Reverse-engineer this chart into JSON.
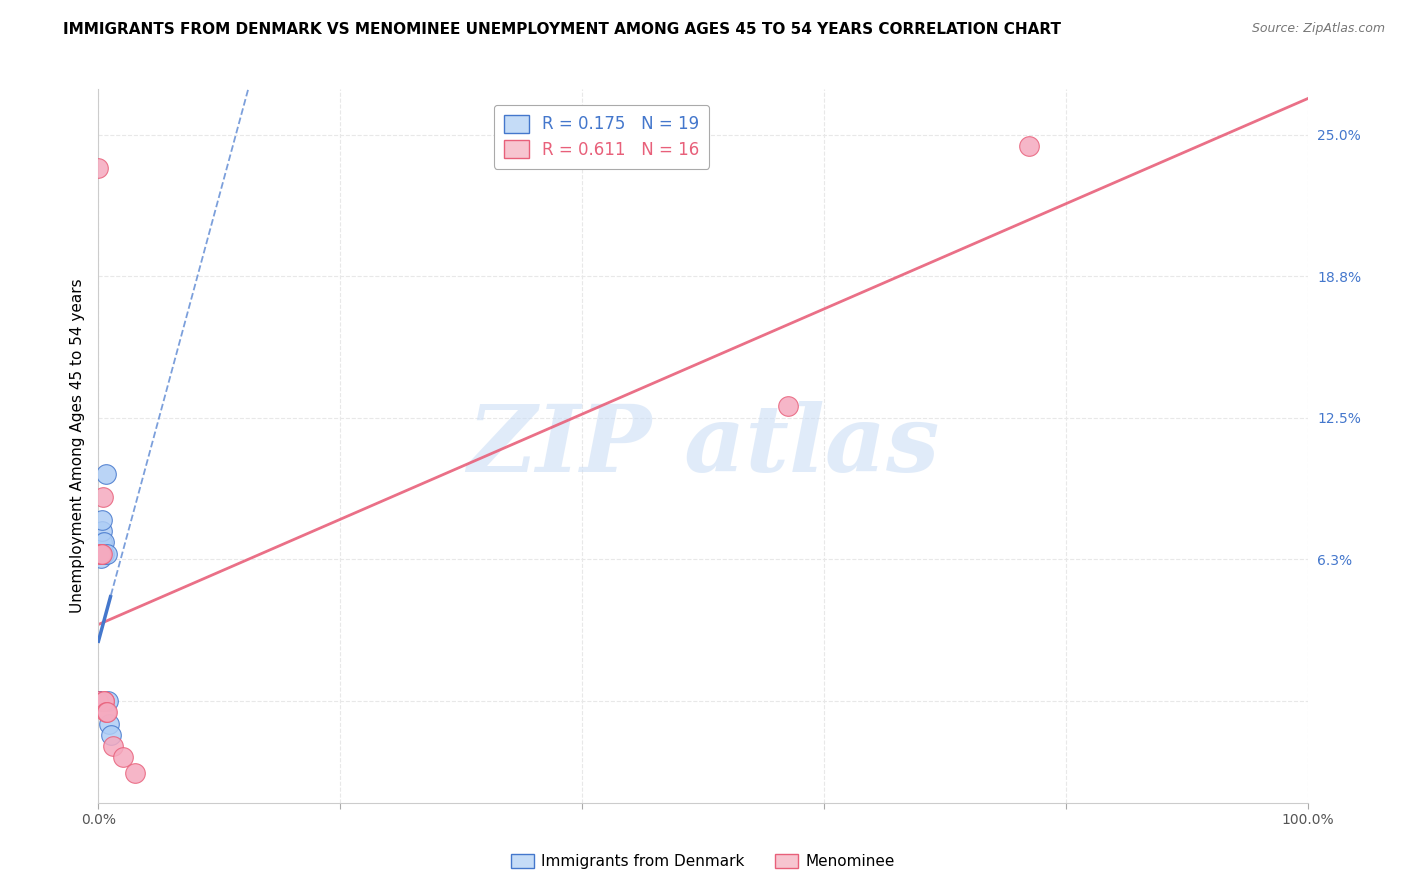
{
  "title": "IMMIGRANTS FROM DENMARK VS MENOMINEE UNEMPLOYMENT AMONG AGES 45 TO 54 YEARS CORRELATION CHART",
  "source": "Source: ZipAtlas.com",
  "ylabel_label": "Unemployment Among Ages 45 to 54 years",
  "xlim": [
    0.0,
    1.0
  ],
  "ylim": [
    -0.045,
    0.27
  ],
  "blue_R": 0.175,
  "blue_N": 19,
  "pink_R": 0.611,
  "pink_N": 16,
  "blue_points": [
    [
      0.0,
      0.0
    ],
    [
      0.0,
      0.0
    ],
    [
      0.0,
      0.0
    ],
    [
      0.0,
      0.0
    ],
    [
      0.0,
      0.0
    ],
    [
      0.0,
      0.0
    ],
    [
      0.0,
      0.0
    ],
    [
      0.002,
      0.063
    ],
    [
      0.003,
      0.07
    ],
    [
      0.003,
      0.075
    ],
    [
      0.003,
      0.08
    ],
    [
      0.004,
      0.065
    ],
    [
      0.005,
      0.065
    ],
    [
      0.005,
      0.07
    ],
    [
      0.006,
      0.1
    ],
    [
      0.007,
      0.065
    ],
    [
      0.008,
      0.0
    ],
    [
      0.009,
      -0.01
    ],
    [
      0.01,
      -0.015
    ]
  ],
  "pink_points": [
    [
      0.0,
      0.235
    ],
    [
      0.0,
      0.0
    ],
    [
      0.001,
      0.065
    ],
    [
      0.002,
      0.065
    ],
    [
      0.002,
      0.065
    ],
    [
      0.003,
      0.065
    ],
    [
      0.004,
      0.09
    ],
    [
      0.005,
      0.0
    ],
    [
      0.005,
      0.0
    ],
    [
      0.006,
      -0.005
    ],
    [
      0.007,
      -0.005
    ],
    [
      0.012,
      -0.02
    ],
    [
      0.02,
      -0.025
    ],
    [
      0.03,
      -0.032
    ],
    [
      0.57,
      0.13
    ],
    [
      0.77,
      0.245
    ]
  ],
  "blue_scatter_color": "#AECDF5",
  "pink_scatter_color": "#F5AABF",
  "blue_line_color": "#4477CC",
  "pink_line_color": "#E8607A",
  "legend_blue_fill": "#C5DCF7",
  "legend_pink_fill": "#F7C5D0",
  "watermark_text": "ZIP atlas",
  "watermark_color": "#C8DCF5",
  "grid_color": "#E8E8E8",
  "xtick_positions": [
    0.0,
    0.2,
    0.4,
    0.6,
    0.8,
    1.0
  ],
  "xtick_labels": [
    "0.0%",
    "",
    "",
    "",
    "",
    "100.0%"
  ],
  "ytick_positions": [
    0.0,
    0.0625,
    0.125,
    0.1875,
    0.25
  ],
  "ytick_labels": [
    "",
    "6.3%",
    "12.5%",
    "18.8%",
    "25.0%"
  ]
}
